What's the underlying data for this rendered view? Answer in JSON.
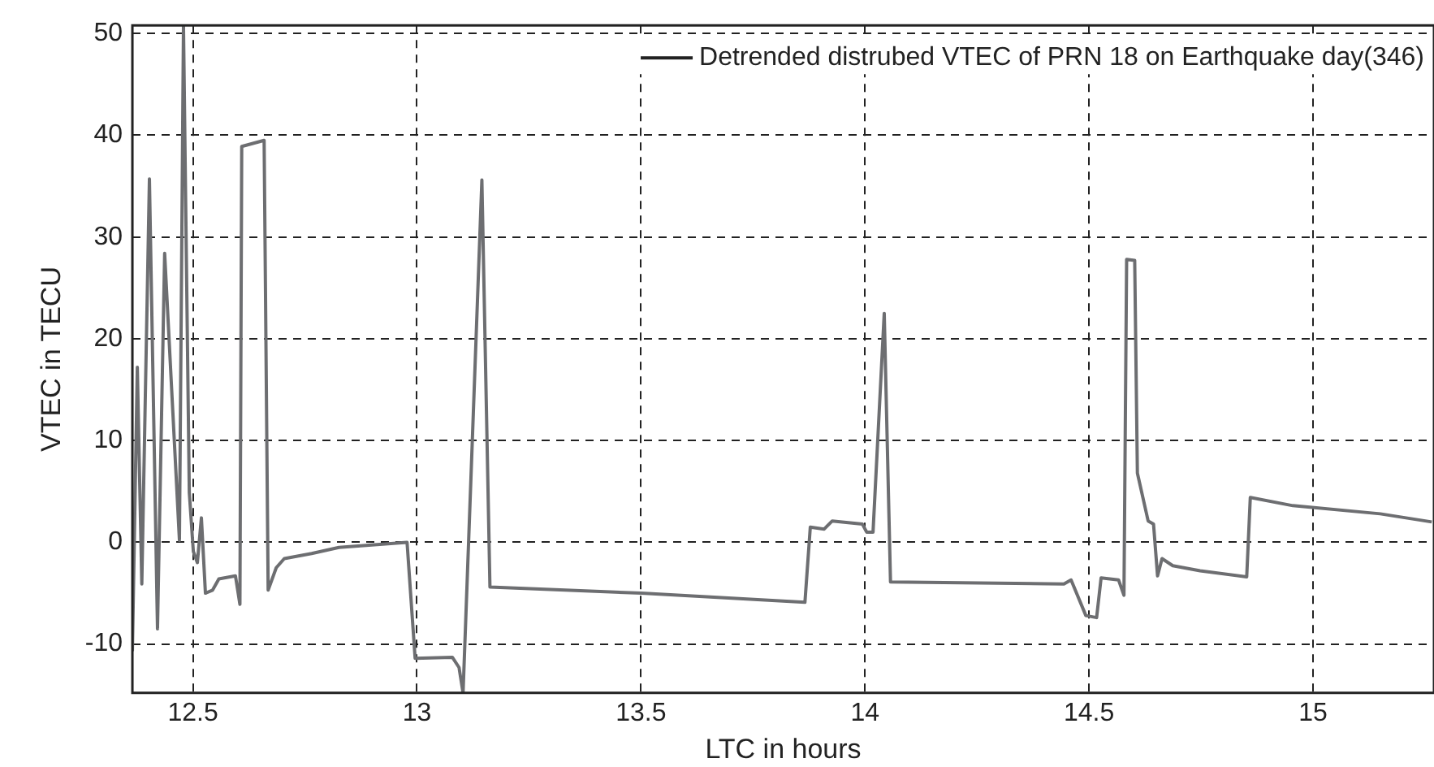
{
  "chart_data": {
    "type": "line",
    "xlabel": "LTC in hours",
    "ylabel": "VTEC in TECU",
    "xlim": [
      12.365,
      15.27
    ],
    "ylim": [
      -14.8,
      50.8
    ],
    "xticks": [
      12.5,
      13,
      13.5,
      14,
      14.5,
      15
    ],
    "yticks": [
      -10,
      0,
      10,
      20,
      30,
      40,
      50
    ],
    "grid": true,
    "legend": "top right",
    "marker": "none",
    "series": [
      {
        "name": "Detrended distrubed VTEC of PRN 18 on Earthquake day(346)",
        "color": "#6d6e71",
        "x": [
          12.365,
          12.376,
          12.386,
          12.403,
          12.421,
          12.437,
          12.47,
          12.479,
          12.492,
          12.501,
          12.51,
          12.519,
          12.528,
          12.544,
          12.558,
          12.595,
          12.605,
          12.609,
          12.659,
          12.668,
          12.686,
          12.704,
          12.765,
          12.826,
          12.978,
          12.996,
          13.079,
          13.094,
          13.103,
          13.145,
          13.163,
          13.501,
          13.866,
          13.878,
          13.909,
          13.927,
          13.994,
          14.004,
          14.018,
          14.043,
          14.057,
          14.444,
          14.46,
          14.493,
          14.517,
          14.527,
          14.566,
          14.578,
          14.584,
          14.602,
          14.608,
          14.632,
          14.644,
          14.653,
          14.663,
          14.687,
          14.748,
          14.852,
          14.86,
          14.955,
          15.15,
          15.265
        ],
        "values": [
          -10.7,
          17.2,
          -4.1,
          35.7,
          -8.5,
          28.4,
          0.2,
          50.8,
          4.9,
          -0.9,
          -2.0,
          2.4,
          -5.0,
          -4.7,
          -3.6,
          -3.3,
          -6.1,
          38.9,
          39.5,
          -4.7,
          -2.5,
          -1.6,
          -1.1,
          -0.5,
          0.0,
          -11.4,
          -11.3,
          -12.3,
          -14.8,
          35.6,
          -4.4,
          -5.0,
          -5.9,
          1.5,
          1.3,
          2.1,
          1.8,
          1.0,
          1.0,
          22.5,
          -3.9,
          -4.1,
          -3.7,
          -7.2,
          -7.4,
          -3.5,
          -3.7,
          -5.2,
          27.8,
          27.7,
          6.8,
          2.1,
          1.8,
          -3.3,
          -1.6,
          -2.3,
          -2.8,
          -3.4,
          4.4,
          3.6,
          2.8,
          2.0
        ]
      }
    ]
  }
}
